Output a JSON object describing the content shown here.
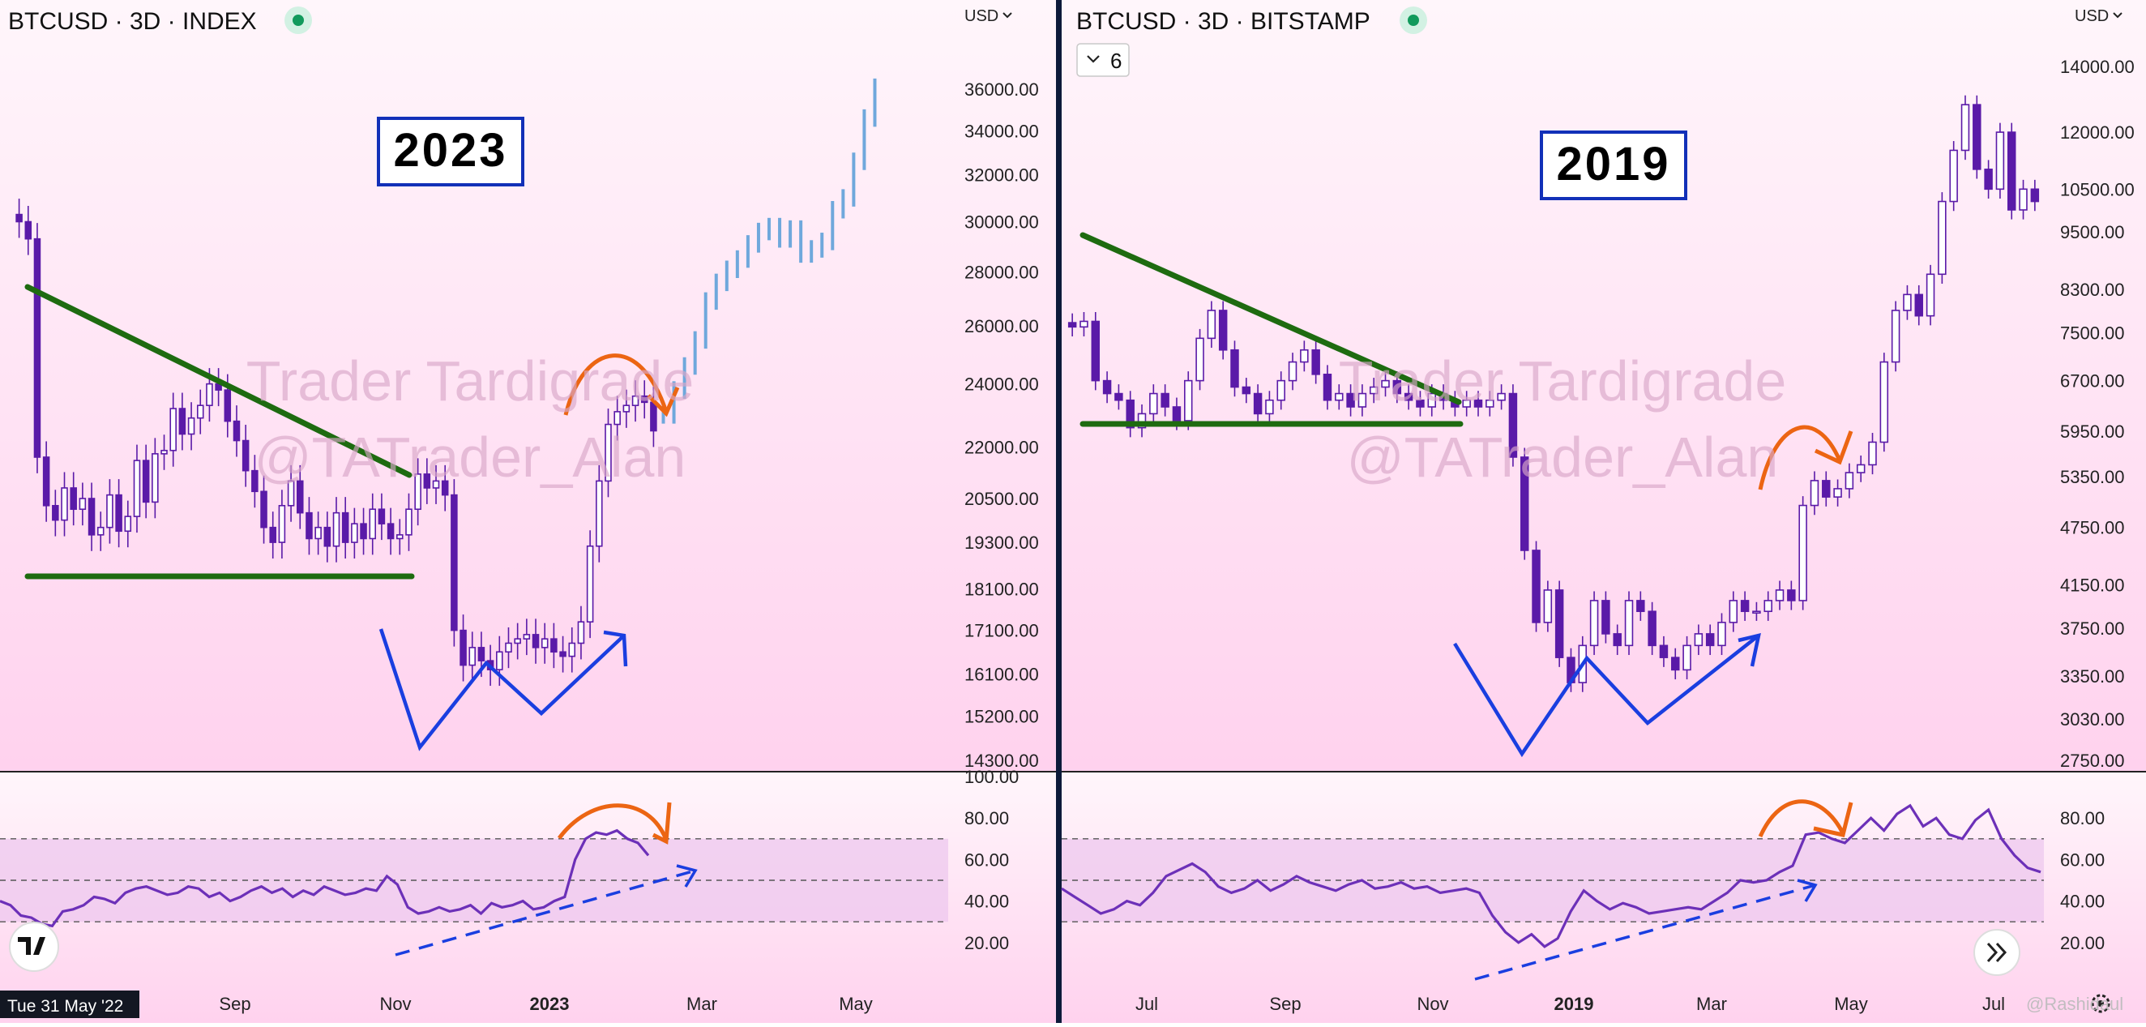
{
  "colors": {
    "bg_top": "#fff6fb",
    "bg_bottom": "#ffd2ee",
    "candle": "#5a1aa8",
    "projection": "#6fa8dc",
    "green_line": "#1e6b10",
    "blue_line": "#1a3ee0",
    "orange": "#ec6513",
    "rsi_line": "#6c30b8",
    "rsi_band": "#ecc6ee",
    "watermark": "#d9a7c9",
    "divider": "#0d1a3a"
  },
  "watermark": {
    "line1": "Trader Tardigrade",
    "line2": "@TATrader_Alan"
  },
  "left": {
    "title": "BTCUSD · 3D · INDEX",
    "currency": "USD",
    "year_box": "2023",
    "cursor_date": "Tue 31 May '22",
    "time_labels": [
      "Sep",
      "Nov",
      "2023",
      "Mar",
      "May"
    ],
    "price_ticks": [
      "36000.00",
      "34000.00",
      "32000.00",
      "30000.00",
      "28000.00",
      "26000.00",
      "24000.00",
      "22000.00",
      "20500.00",
      "19300.00",
      "18100.00",
      "17100.00",
      "16100.00",
      "15200.00",
      "14300.00"
    ],
    "rsi_ticks": [
      "100.00",
      "80.00",
      "60.00",
      "40.00",
      "20.00"
    ]
  },
  "right": {
    "title": "BTCUSD · 3D · BITSTAMP",
    "currency": "USD",
    "year_box": "2019",
    "indicator_count": "6",
    "time_labels": [
      "Jul",
      "Sep",
      "Nov",
      "2019",
      "Mar",
      "May",
      "Jul"
    ],
    "price_ticks": [
      "14000.00",
      "12000.00",
      "10500.00",
      "9500.00",
      "8300.00",
      "7500.00",
      "6700.00",
      "5950.00",
      "5350.00",
      "4750.00",
      "4150.00",
      "3750.00",
      "3350.00",
      "3030.00",
      "2750.00"
    ],
    "rsi_ticks": [
      "80.00",
      "60.00",
      "40.00",
      "20.00"
    ],
    "credit": "@Rashidaul"
  },
  "chart_data": [
    {
      "type": "candlestick",
      "title": "BTCUSD · 3D · INDEX",
      "annotation": "2023",
      "ylim": [
        14300,
        36000
      ],
      "x_ticks": [
        "Sep",
        "Nov",
        "2023",
        "Mar",
        "May"
      ],
      "y_ticks": [
        36000,
        34000,
        32000,
        30000,
        28000,
        26000,
        24000,
        22000,
        20500,
        19300,
        18100,
        17100,
        16100,
        15200,
        14300
      ],
      "series": [
        {
          "name": "",
          "close_path": [
            30000,
            29300,
            21700,
            20300,
            19900,
            20800,
            20200,
            20500,
            19500,
            19700,
            20600,
            19600,
            20000,
            21600,
            20400,
            21800,
            21900,
            23200,
            22400,
            22900,
            23300,
            24000,
            23800,
            22800,
            22200,
            21300,
            20700,
            19700,
            19300,
            20300,
            21000,
            20100,
            19400,
            19700,
            19200,
            20100,
            19300,
            19800,
            19400,
            20200,
            19800,
            19400,
            19500,
            20200,
            21200,
            20800,
            21000,
            20600,
            17100,
            16300,
            16700,
            16400,
            16200,
            16600,
            16800,
            16900,
            17000,
            16700,
            16900,
            16600,
            16500,
            16800,
            17300,
            19200,
            21000,
            22700,
            23100,
            23300,
            23600,
            23400,
            22500
          ]
        },
        {
          "name": "",
          "projection": true,
          "close_path": [
            23000,
            23800,
            24600,
            25500,
            26900,
            27600,
            28100,
            28500,
            29100,
            29600,
            29800,
            29300,
            29700,
            28700,
            28900,
            29200,
            30500,
            31000,
            32600,
            34600,
            36100
          ]
        }
      ],
      "lines": [
        {
          "name": "",
          "from": {
            "x": "2022-06",
            "y": 27200
          },
          "to": {
            "x": "2022-11-08",
            "y": 21400
          }
        },
        {
          "name": "",
          "from": {
            "x": "2022-06",
            "y": 18600
          },
          "to": {
            "x": "2022-11-08",
            "y": 18600
          }
        }
      ],
      "rsi": {
        "ylim": [
          0,
          100
        ],
        "bands": [
          70,
          50,
          30
        ],
        "values": [
          40,
          38,
          33,
          32,
          29,
          28,
          35,
          36,
          38,
          42,
          41,
          39,
          44,
          46,
          47,
          45,
          43,
          44,
          47,
          46,
          42,
          44,
          40,
          42,
          45,
          47,
          44,
          46,
          42,
          45,
          43,
          47,
          45,
          43,
          44,
          46,
          45,
          52,
          48,
          37,
          34,
          35,
          37,
          35,
          36,
          38,
          34,
          39,
          37,
          38,
          40,
          36,
          37,
          40,
          42,
          60,
          70,
          73,
          72,
          74,
          70,
          68,
          62
        ]
      }
    },
    {
      "type": "candlestick",
      "title": "BTCUSD · 3D · BITSTAMP",
      "annotation": "2019",
      "ylim": [
        2750,
        14000
      ],
      "x_ticks": [
        "Jul",
        "Sep",
        "Nov",
        "2019",
        "Mar",
        "May",
        "Jul"
      ],
      "y_ticks": [
        14000,
        12000,
        10500,
        9500,
        8300,
        7500,
        6700,
        5950,
        5350,
        4750,
        4150,
        3750,
        3350,
        3030,
        2750
      ],
      "series": [
        {
          "name": "",
          "close_path": [
            7600,
            7700,
            6700,
            6500,
            6400,
            6000,
            6200,
            6500,
            6300,
            6100,
            6700,
            7400,
            7900,
            7200,
            6600,
            6500,
            6200,
            6400,
            6700,
            7000,
            7200,
            6800,
            6400,
            6500,
            6300,
            6500,
            6600,
            6700,
            6500,
            6400,
            6300,
            6500,
            6400,
            6300,
            6400,
            6300,
            6400,
            6500,
            5600,
            4500,
            3800,
            4100,
            3500,
            3300,
            3600,
            4000,
            3700,
            3600,
            4000,
            3900,
            3600,
            3500,
            3400,
            3600,
            3700,
            3600,
            3800,
            4000,
            3900,
            3900,
            4000,
            4100,
            4000,
            5000,
            5300,
            5100,
            5200,
            5400,
            5500,
            5800,
            7000,
            7900,
            8200,
            7800,
            8600,
            10200,
            11500,
            12800,
            11000,
            10500,
            12000,
            10000,
            10500,
            10200
          ]
        }
      ],
      "lines": [
        {
          "name": "",
          "from": {
            "x": "2018-06",
            "y": 7900
          },
          "to": {
            "x": "2018-11-14",
            "y": 6300
          }
        },
        {
          "name": "",
          "from": {
            "x": "2018-06",
            "y": 6000
          },
          "to": {
            "x": "2018-11-14",
            "y": 6000
          }
        }
      ],
      "rsi": {
        "ylim": [
          0,
          100
        ],
        "bands": [
          70,
          50,
          30
        ],
        "values": [
          46,
          42,
          38,
          34,
          36,
          40,
          38,
          44,
          52,
          55,
          58,
          54,
          47,
          44,
          46,
          50,
          45,
          48,
          52,
          49,
          47,
          45,
          48,
          50,
          46,
          47,
          49,
          46,
          47,
          44,
          45,
          46,
          44,
          33,
          25,
          20,
          24,
          18,
          22,
          35,
          45,
          40,
          36,
          39,
          37,
          34,
          35,
          36,
          37,
          36,
          40,
          44,
          50,
          49,
          50,
          54,
          57,
          72,
          73,
          70,
          68,
          74,
          80,
          74,
          82,
          86,
          76,
          80,
          72,
          70,
          79,
          84,
          70,
          62,
          56,
          54
        ]
      }
    }
  ]
}
